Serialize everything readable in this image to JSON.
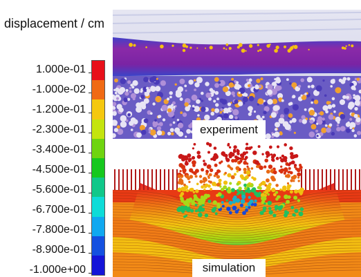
{
  "legend": {
    "title": "displacement / cm",
    "ticks": [
      "1.000e-01",
      "-1.000e-02",
      "-1.200e-01",
      "-2.300e-01",
      "-3.400e-01",
      "-4.500e-01",
      "-5.600e-01",
      "-6.700e-01",
      "-7.800e-01",
      "-8.900e-01",
      "-1.000e+00"
    ],
    "colors": [
      "#e8101a",
      "#f06a14",
      "#f5c80f",
      "#c4e40e",
      "#6fd410",
      "#16c81e",
      "#10c88a",
      "#0edcd8",
      "#10a8f0",
      "#1450e0",
      "#1414d8"
    ]
  },
  "panels": {
    "experiment_label": "experiment",
    "simulation_label": "simulation"
  }
}
